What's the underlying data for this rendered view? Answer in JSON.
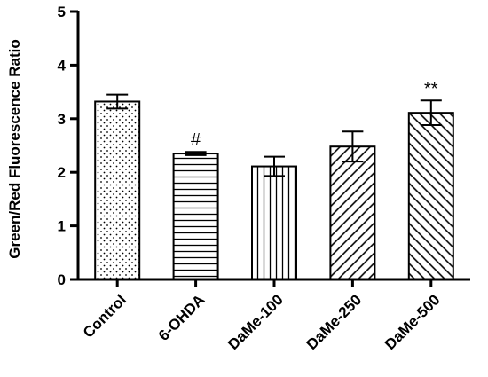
{
  "chart_data": {
    "type": "bar",
    "ylabel": "Green/Red Fluorescence Ratio",
    "xlabel": "",
    "ylim": [
      0,
      5
    ],
    "yticks": [
      "0",
      "1",
      "2",
      "3",
      "4",
      "5"
    ],
    "categories": [
      "Control",
      "6-OHDA",
      "DaMe-100",
      "DaMe-250",
      "DaMe-500"
    ],
    "values": [
      3.32,
      2.35,
      2.11,
      2.48,
      3.11
    ],
    "errors": [
      0.13,
      0.03,
      0.18,
      0.28,
      0.23
    ],
    "annotations": [
      "",
      "#",
      "",
      "",
      "**"
    ],
    "patterns": [
      "dots",
      "horizontal-lines",
      "vertical-lines",
      "diagonal-forward",
      "diagonal-back"
    ],
    "bar_color": "#000000",
    "background": "#ffffff",
    "grid": false,
    "legend": "none"
  }
}
